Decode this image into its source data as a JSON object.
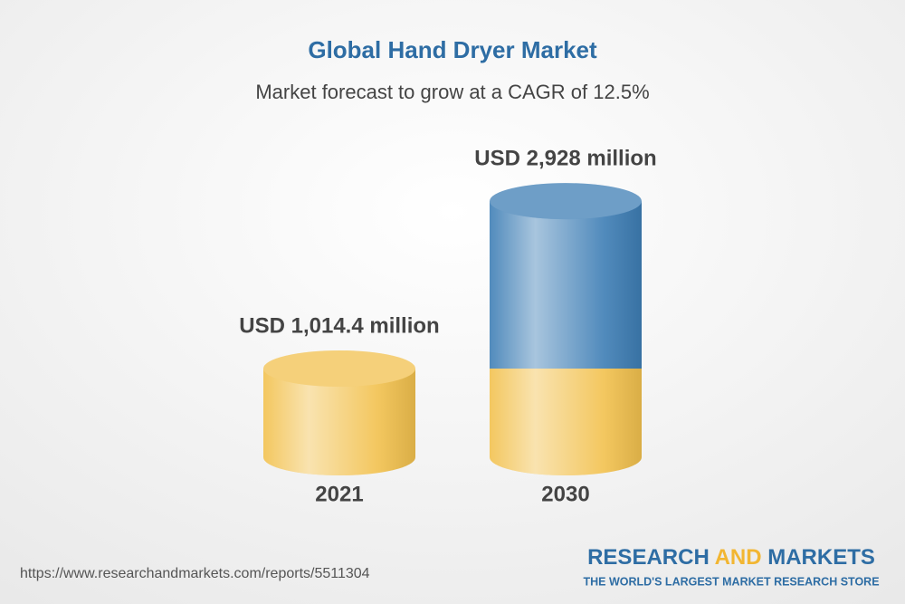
{
  "chart_data": {
    "type": "cylinder",
    "title": "Global Hand Dryer Market",
    "subtitle": "Market forecast to grow at a CAGR of 12.5%",
    "categories": [
      "2021",
      "2030"
    ],
    "values": [
      1014.4,
      2928
    ],
    "value_labels": [
      "USD 1,014.4 million",
      "USD 2,928 million"
    ],
    "colors": [
      "#f2c14e",
      "#3e7eb5"
    ]
  },
  "footer": {
    "url": "https://www.researchandmarkets.com/reports/5511304",
    "logo": {
      "word1": "RESEARCH",
      "word2": "AND",
      "word3": "MARKETS",
      "tagline": "THE WORLD'S LARGEST MARKET RESEARCH STORE"
    }
  }
}
